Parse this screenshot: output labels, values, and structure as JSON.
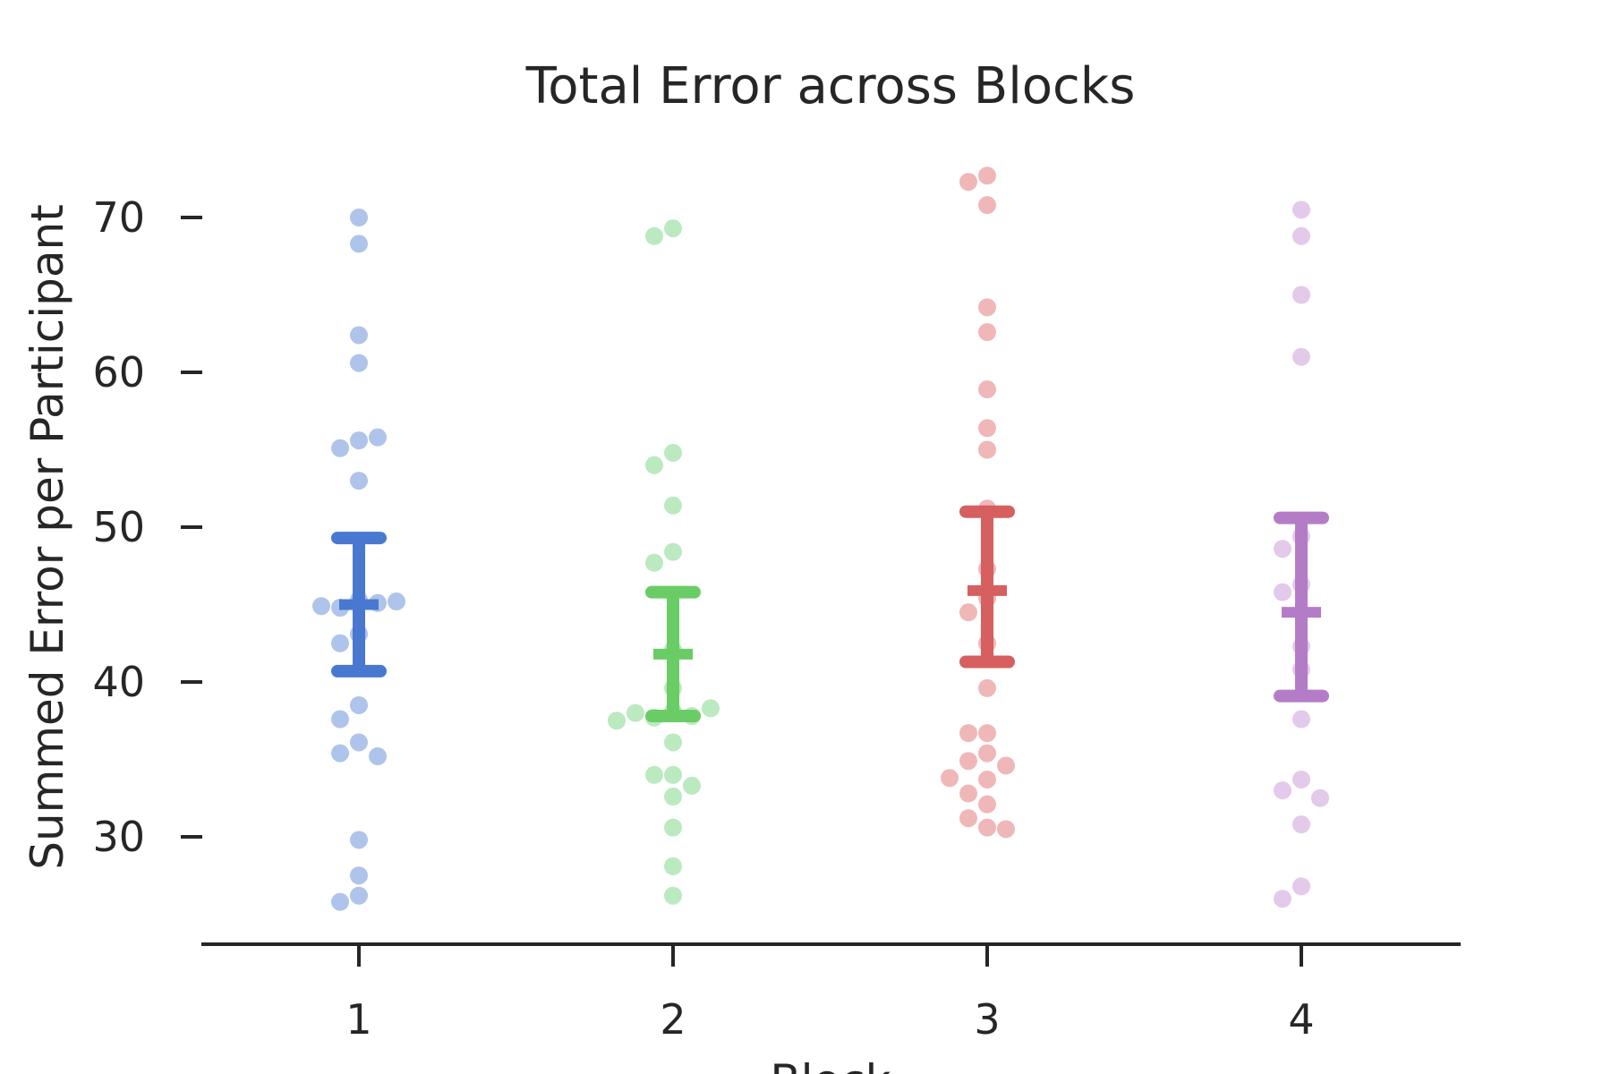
{
  "chart_data": {
    "type": "scatter",
    "title": "Total Error across Blocks",
    "xlabel": "Block",
    "ylabel": "Summed Error per Participant",
    "categories": [
      "1",
      "2",
      "3",
      "4"
    ],
    "yticks": [
      "30",
      "40",
      "50",
      "60",
      "70"
    ],
    "ylim": [
      23,
      74
    ],
    "grid": false,
    "series": [
      {
        "category": "1",
        "point_color": "#aec4ea",
        "bar_color": "#4878cf",
        "mean": 45.0,
        "ci": [
          40.7,
          49.3
        ],
        "points": [
          70.0,
          68.3,
          62.4,
          60.6,
          55.6,
          55.1,
          55.8,
          53.0,
          45.3,
          44.8,
          45.1,
          44.9,
          45.2,
          43.1,
          42.5,
          38.5,
          37.6,
          36.1,
          35.4,
          35.2,
          29.8,
          27.5,
          26.2,
          25.8
        ]
      },
      {
        "category": "2",
        "point_color": "#bbe9c0",
        "bar_color": "#6acc65",
        "mean": 41.8,
        "ci": [
          37.8,
          45.8
        ],
        "points": [
          69.3,
          68.8,
          54.8,
          54.0,
          51.4,
          48.4,
          47.7,
          42.1,
          39.6,
          38.1,
          37.7,
          37.8,
          38.0,
          38.3,
          37.5,
          36.1,
          34.0,
          34.0,
          33.3,
          32.6,
          30.6,
          28.1,
          26.2
        ]
      },
      {
        "category": "3",
        "point_color": "#f0b7b8",
        "bar_color": "#d65f5f",
        "mean": 45.9,
        "ci": [
          41.3,
          51.0
        ],
        "points": [
          72.7,
          72.3,
          70.8,
          64.2,
          62.6,
          58.9,
          56.4,
          55.0,
          51.2,
          47.3,
          45.4,
          44.5,
          42.5,
          39.6,
          36.7,
          36.7,
          35.4,
          34.9,
          34.6,
          33.7,
          33.8,
          32.8,
          32.1,
          31.2,
          30.6,
          30.5
        ]
      },
      {
        "category": "4",
        "point_color": "#e3c9ea",
        "bar_color": "#b47cc7",
        "mean": 44.5,
        "ci": [
          39.1,
          50.6
        ],
        "points": [
          70.5,
          68.8,
          65.0,
          61.0,
          49.4,
          48.6,
          46.3,
          45.8,
          42.3,
          40.8,
          37.6,
          33.7,
          33.0,
          32.5,
          30.8,
          26.8,
          26.0
        ]
      }
    ]
  }
}
